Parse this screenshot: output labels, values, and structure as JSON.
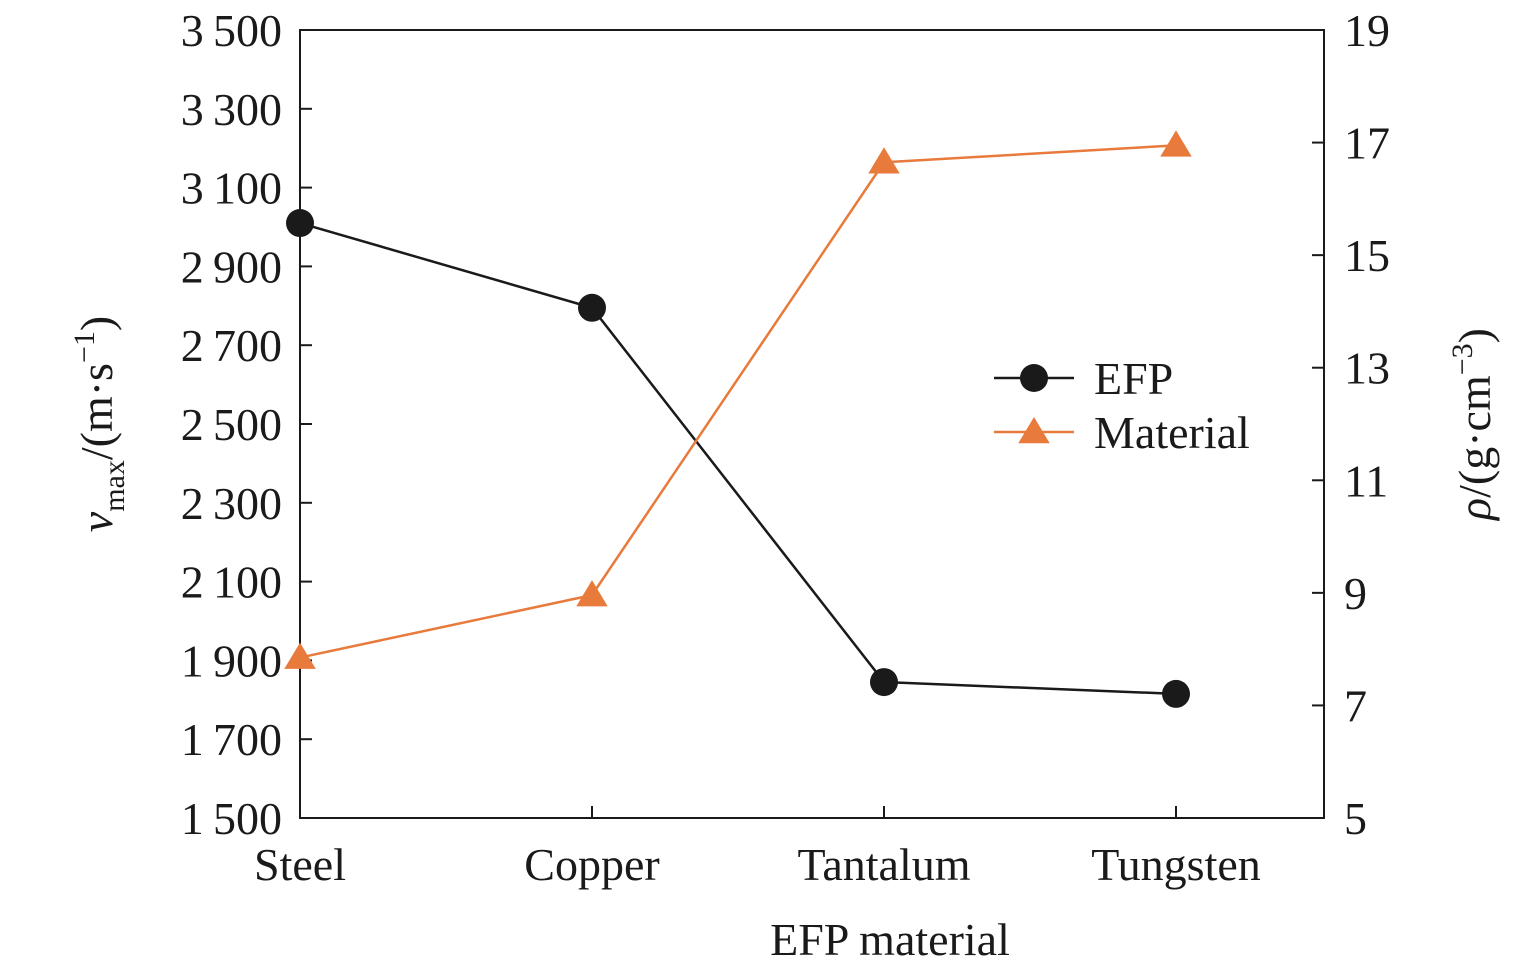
{
  "chart_data": {
    "type": "line",
    "categories": [
      "Steel",
      "Copper",
      "Tantalum",
      "Tungsten"
    ],
    "xlabel": "EFP material",
    "ylabel_left": {
      "symbol": "v",
      "subscript": "max",
      "unit": "/(m·s",
      "unit_sup": "−1",
      "close": ")"
    },
    "ylabel_right": {
      "symbol": "ρ",
      "unit": "/(g·cm",
      "unit_sup": "−3",
      "close": ")"
    },
    "y_left": {
      "min": 1500,
      "max": 3500,
      "ticks": [
        1500,
        1700,
        1900,
        2100,
        2300,
        2500,
        2700,
        2900,
        3100,
        3300,
        3500
      ]
    },
    "y_right": {
      "min": 5,
      "max": 19,
      "ticks": [
        5,
        7,
        9,
        11,
        13,
        15,
        17,
        19
      ]
    },
    "grid": false,
    "legend_position": "center-right",
    "series": [
      {
        "name": "EFP",
        "axis": "left",
        "marker": "circle",
        "color": "#1a1a1a",
        "values": [
          3010,
          2795,
          1845,
          1815
        ]
      },
      {
        "name": "Material",
        "axis": "right",
        "marker": "triangle",
        "color": "#e87a3c",
        "values": [
          7.85,
          8.96,
          16.65,
          16.95
        ]
      }
    ]
  }
}
